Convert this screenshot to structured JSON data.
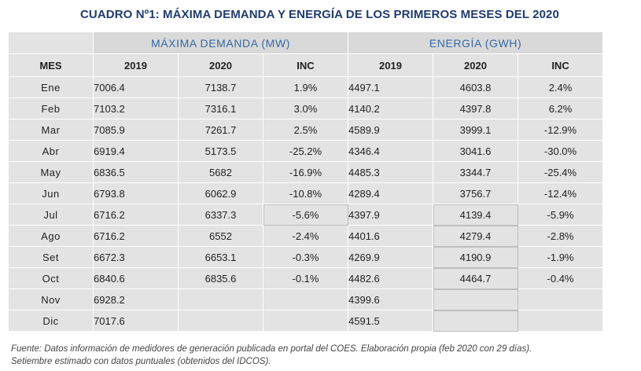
{
  "title": "CUADRO Nº1: MÁXIMA DEMANDA Y ENERGÍA DE LOS PRIMEROS MESES DEL 2020",
  "group_headers": {
    "demanda": "MÁXIMA DEMANDA (MW)",
    "energia": "ENERGÍA (GWH)"
  },
  "column_headers": [
    "MES",
    "2019",
    "2020",
    "INC",
    "2019",
    "2020",
    "INC"
  ],
  "rows": [
    [
      "Ene",
      "7006.4",
      "7138.7",
      "1.9%",
      "4497.1",
      "4603.8",
      "2.4%"
    ],
    [
      "Feb",
      "7103.2",
      "7316.1",
      "3.0%",
      "4140.2",
      "4397.8",
      "6.2%"
    ],
    [
      "Mar",
      "7085.9",
      "7261.7",
      "2.5%",
      "4589.9",
      "3999.1",
      "-12.9%"
    ],
    [
      "Abr",
      "6919.4",
      "5173.5",
      "-25.2%",
      "4346.4",
      "3041.6",
      "-30.0%"
    ],
    [
      "May",
      "6836.5",
      "5682",
      "-16.9%",
      "4485.3",
      "3344.7",
      "-25.4%"
    ],
    [
      "Jun",
      "6793.8",
      "6062.9",
      "-10.8%",
      "4289.4",
      "3756.7",
      "-12.4%"
    ],
    [
      "Jul",
      "6716.2",
      "6337.3",
      "-5.6%",
      "4397.9",
      "4139.4",
      "-5.9%"
    ],
    [
      "Ago",
      "6716.2",
      "6552",
      "-2.4%",
      "4401.6",
      "4279.4",
      "-2.8%"
    ],
    [
      "Set",
      "6672.3",
      "6653.1",
      "-0.3%",
      "4269.9",
      "4190.9",
      "-1.9%"
    ],
    [
      "Oct",
      "6840.6",
      "6835.6",
      "-0.1%",
      "4482.6",
      "4464.7",
      "-0.4%"
    ],
    [
      "Nov",
      "6928.2",
      "",
      "",
      "4399.6",
      "",
      ""
    ],
    [
      "Dic",
      "7017.6",
      "",
      "",
      "4591.5",
      "",
      ""
    ]
  ],
  "footnote": [
    "Fuente: Datos información de medidores de generación publicada en portal del COES. Elaboración propia (feb 2020 con 29 días).",
    "Setiembre estimado con datos puntuales (obtenidos del IDCOS)."
  ]
}
